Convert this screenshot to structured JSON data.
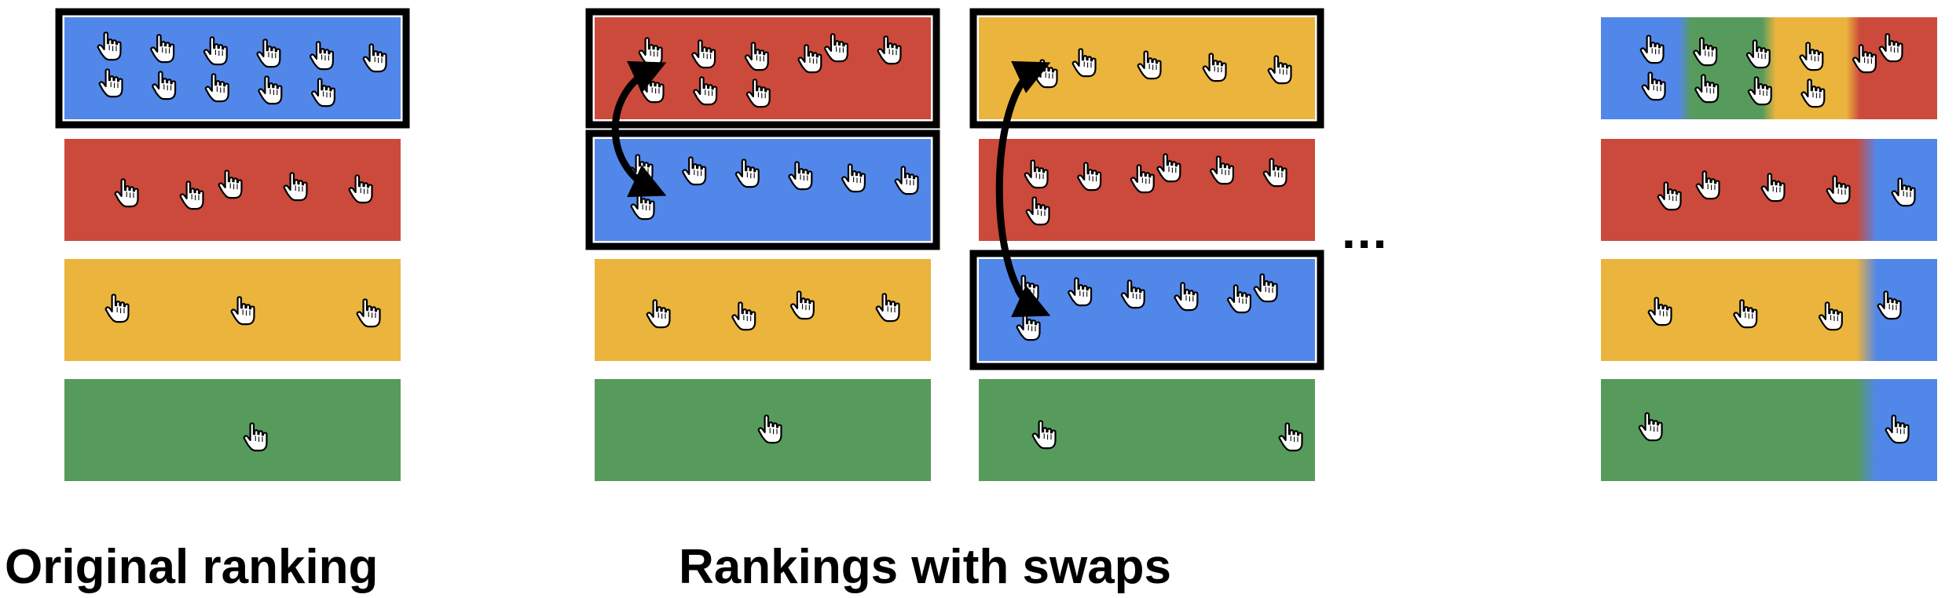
{
  "captions": {
    "original": "Original ranking",
    "swaps": "Rankings with swaps"
  },
  "ellipsis": "...",
  "colors": {
    "blue": "#5287EA",
    "red": "#CC4A3B",
    "yellow": "#EBB43D",
    "green": "#579B5C",
    "border": "#000000"
  },
  "panels": [
    {
      "name": "original-ranking",
      "rows": [
        {
          "color": "blue",
          "clicks": 11,
          "highlighted": true
        },
        {
          "color": "red",
          "clicks": 5,
          "highlighted": false
        },
        {
          "color": "yellow",
          "clicks": 3,
          "highlighted": false
        },
        {
          "color": "green",
          "clicks": 1,
          "highlighted": false
        }
      ]
    },
    {
      "name": "swap-ranking-1",
      "swap": [
        0,
        1
      ],
      "rows": [
        {
          "color": "red",
          "clicks": 9,
          "highlighted": true
        },
        {
          "color": "blue",
          "clicks": 7,
          "highlighted": true
        },
        {
          "color": "yellow",
          "clicks": 4,
          "highlighted": false
        },
        {
          "color": "green",
          "clicks": 1,
          "highlighted": false
        }
      ]
    },
    {
      "name": "swap-ranking-2",
      "swap": [
        0,
        2
      ],
      "rows": [
        {
          "color": "yellow",
          "clicks": 5,
          "highlighted": true
        },
        {
          "color": "red",
          "clicks": 7,
          "highlighted": false
        },
        {
          "color": "blue",
          "clicks": 7,
          "highlighted": true
        },
        {
          "color": "green",
          "clicks": 2,
          "highlighted": false
        }
      ]
    },
    {
      "name": "aggregate-ranking",
      "rows": [
        {
          "gradient": [
            "blue",
            "green",
            "yellow",
            "red"
          ],
          "clicks": 10
        },
        {
          "gradient": [
            "red",
            "blue"
          ],
          "clicks": 5
        },
        {
          "gradient": [
            "yellow",
            "blue"
          ],
          "clicks": 4
        },
        {
          "gradient": [
            "green",
            "blue"
          ],
          "clicks": 2
        }
      ]
    }
  ]
}
